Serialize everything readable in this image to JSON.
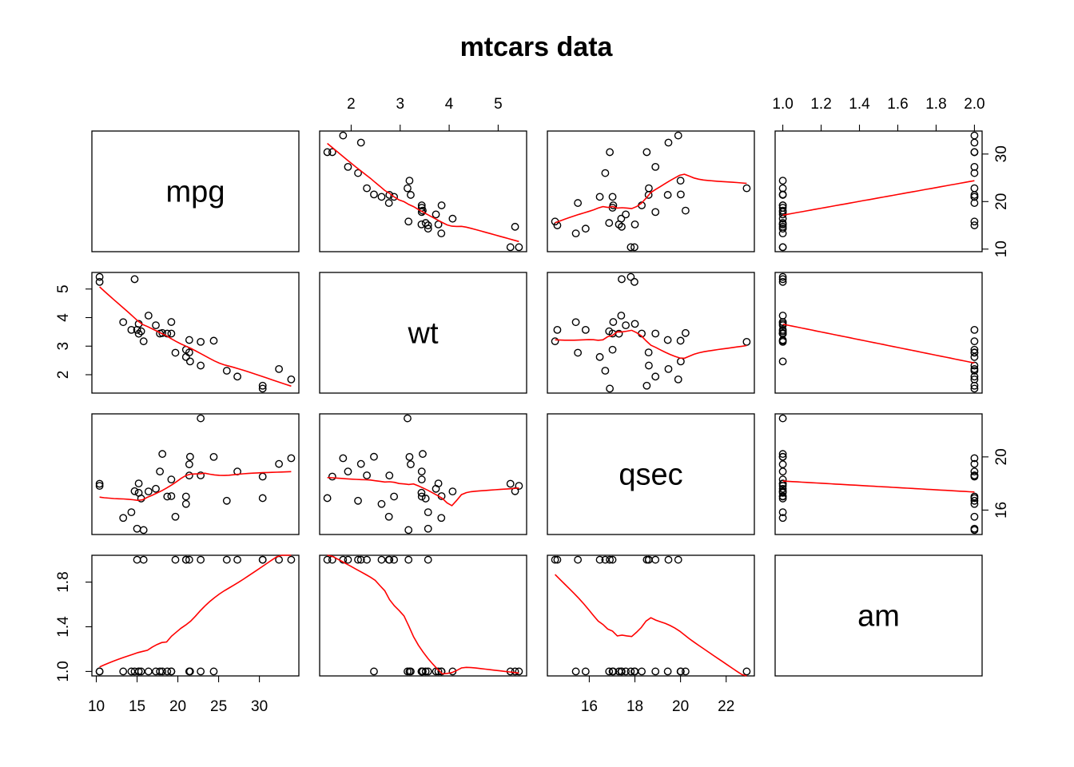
{
  "chart_data": {
    "type": "scatter",
    "title": "mtcars data",
    "variables": [
      "mpg",
      "wt",
      "qsec",
      "am"
    ],
    "ranges": {
      "mpg": [
        10.4,
        33.9
      ],
      "wt": [
        1.513,
        5.424
      ],
      "qsec": [
        14.5,
        22.9
      ],
      "am": [
        1.0,
        2.0
      ]
    },
    "ticks": {
      "mpg": [
        10,
        15,
        20,
        25,
        30
      ],
      "wt": [
        2,
        3,
        4,
        5
      ],
      "qsec": [
        16,
        18,
        20,
        22
      ],
      "am": [
        1.0,
        1.2,
        1.4,
        1.6,
        1.8,
        2.0
      ]
    },
    "axis_ticks": {
      "top": [
        {
          "col": 1,
          "var": "wt",
          "labels": [
            "2",
            "3",
            "4",
            "5"
          ]
        },
        {
          "col": 3,
          "var": "am",
          "labels": [
            "1.0",
            "1.2",
            "1.4",
            "1.6",
            "1.8",
            "2.0"
          ]
        }
      ],
      "bottom": [
        {
          "col": 0,
          "var": "mpg",
          "labels": [
            "10",
            "15",
            "20",
            "25",
            "30"
          ]
        },
        {
          "col": 2,
          "var": "qsec",
          "labels": [
            "16",
            "18",
            "20",
            "22"
          ]
        }
      ],
      "left": [
        {
          "row": 1,
          "var": "wt",
          "labels": [
            "2",
            "3",
            "4",
            "5"
          ]
        },
        {
          "row": 3,
          "var": "am",
          "labels": [
            "1.0",
            "1.4",
            "1.8"
          ],
          "values": [
            1.0,
            1.4,
            1.8
          ]
        }
      ],
      "right": [
        {
          "row": 0,
          "var": "mpg",
          "labels": [
            "10",
            "20",
            "30"
          ],
          "values": [
            10,
            20,
            30
          ]
        },
        {
          "row": 2,
          "var": "qsec",
          "labels": [
            "16",
            "20"
          ],
          "values": [
            16,
            20
          ]
        }
      ]
    },
    "observations": {
      "mpg": [
        21.0,
        21.0,
        22.8,
        21.4,
        18.7,
        18.1,
        14.3,
        24.4,
        22.8,
        19.2,
        17.8,
        16.4,
        17.3,
        15.2,
        10.4,
        10.4,
        14.7,
        32.4,
        30.4,
        33.9,
        21.5,
        15.5,
        15.2,
        13.3,
        19.2,
        27.3,
        26.0,
        30.4,
        15.8,
        19.7,
        15.0,
        21.4
      ],
      "wt": [
        2.62,
        2.875,
        2.32,
        3.215,
        3.44,
        3.46,
        3.57,
        3.19,
        3.15,
        3.44,
        3.44,
        4.07,
        3.73,
        3.78,
        5.25,
        5.424,
        5.345,
        2.2,
        1.615,
        1.835,
        2.465,
        3.52,
        3.435,
        3.84,
        3.845,
        1.935,
        2.14,
        1.513,
        3.17,
        2.77,
        3.57,
        2.78
      ],
      "qsec": [
        16.46,
        17.02,
        18.61,
        19.44,
        17.02,
        20.22,
        15.84,
        20.0,
        22.9,
        18.3,
        18.9,
        17.4,
        17.6,
        18.0,
        17.98,
        17.82,
        17.42,
        19.47,
        18.52,
        19.9,
        20.01,
        16.87,
        17.3,
        15.41,
        17.05,
        18.9,
        16.7,
        16.9,
        14.5,
        15.5,
        14.6,
        18.6
      ],
      "am": [
        2,
        2,
        2,
        1,
        1,
        1,
        1,
        1,
        1,
        1,
        1,
        1,
        1,
        1,
        1,
        1,
        1,
        2,
        2,
        2,
        1,
        1,
        1,
        1,
        1,
        2,
        2,
        2,
        2,
        2,
        2,
        2
      ]
    },
    "smoother_color": "#ff0000",
    "point_color": "#000000"
  }
}
